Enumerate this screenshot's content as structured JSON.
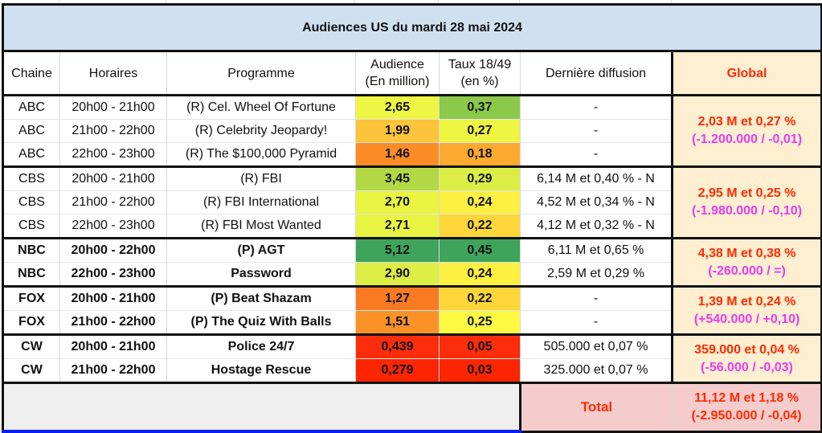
{
  "title": "Audiences US du mardi 28 mai 2024",
  "headers": {
    "chaine": "Chaine",
    "horaires": "Horaires",
    "programme": "Programme",
    "audience_line1": "Audience",
    "audience_line2": "(En million)",
    "taux_line1": "Taux 18/49",
    "taux_line2": "(en %)",
    "derniere": "Dernière diffusion",
    "global": "Global"
  },
  "colors": {
    "title_bg": "#cfe0f1",
    "global_bg": "#fdefd0",
    "global_text": "#ff2a00",
    "diff_text": "#e83cf0",
    "total_bg": "#f4cccc",
    "empty_bg": "#efefef"
  },
  "rows": [
    {
      "chaine": "ABC",
      "horaires": "20h00 - 21h00",
      "programme": "(R) Cel. Wheel Of Fortune",
      "audience": "2,65",
      "taux": "0,37",
      "derniere": "-",
      "aud_color": "#eef542",
      "taux_color": "#8cc94a",
      "bold": false
    },
    {
      "chaine": "ABC",
      "horaires": "21h00 - 22h00",
      "programme": "(R) Celebrity Jeopardy!",
      "audience": "1,99",
      "taux": "0,27",
      "derniere": "-",
      "aud_color": "#fcc43a",
      "taux_color": "#eef542",
      "bold": false
    },
    {
      "chaine": "ABC",
      "horaires": "22h00 - 23h00",
      "programme": "(R) The $100,000 Pyramid",
      "audience": "1,46",
      "taux": "0,18",
      "derniere": "-",
      "aud_color": "#fb8c26",
      "taux_color": "#fdaa30",
      "bold": false
    },
    {
      "chaine": "CBS",
      "horaires": "20h00 - 21h00",
      "programme": "(R) FBI",
      "audience": "3,45",
      "taux": "0,29",
      "derniere": "6,14 M et 0,40 % - N",
      "aud_color": "#b3d846",
      "taux_color": "#dcee46",
      "bold": false
    },
    {
      "chaine": "CBS",
      "horaires": "21h00 - 22h00",
      "programme": "(R) FBI International",
      "audience": "2,70",
      "taux": "0,24",
      "derniere": "4,52 M et 0,34 % - N",
      "aud_color": "#eaf443",
      "taux_color": "#fdf040",
      "bold": false
    },
    {
      "chaine": "CBS",
      "horaires": "22h00 - 23h00",
      "programme": "(R) FBI Most Wanted",
      "audience": "2,71",
      "taux": "0,22",
      "derniere": "4,12 M et 0,32 % - N",
      "aud_color": "#eaf443",
      "taux_color": "#fed63a",
      "bold": false
    },
    {
      "chaine": "NBC",
      "horaires": "20h00 - 22h00",
      "programme": "(P) AGT",
      "audience": "5,12",
      "taux": "0,45",
      "derniere": "6,11 M et 0,65 %",
      "aud_color": "#3ea45c",
      "taux_color": "#3ea45c",
      "bold": true
    },
    {
      "chaine": "NBC",
      "horaires": "22h00 - 23h00",
      "programme": "Password",
      "audience": "2,90",
      "taux": "0,24",
      "derniere": "2,59 M et 0,29 %",
      "aud_color": "#dcee46",
      "taux_color": "#fdf040",
      "bold": true
    },
    {
      "chaine": "FOX",
      "horaires": "20h00 - 21h00",
      "programme": "(P) Beat Shazam",
      "audience": "1,27",
      "taux": "0,22",
      "derniere": "-",
      "aud_color": "#fa7a24",
      "taux_color": "#fed63a",
      "bold": true
    },
    {
      "chaine": "FOX",
      "horaires": "21h00 - 22h00",
      "programme": "(P) The Quiz With Balls",
      "audience": "1,51",
      "taux": "0,25",
      "derniere": "-",
      "aud_color": "#fb9228",
      "taux_color": "#fefa44",
      "bold": true
    },
    {
      "chaine": "CW",
      "horaires": "20h00 - 21h00",
      "programme": "Police 24/7",
      "audience": "0,439",
      "taux": "0,05",
      "derniere": "505.000 et 0,07 %",
      "aud_color": "#fb2d0c",
      "taux_color": "#fb2d0c",
      "bold": true
    },
    {
      "chaine": "CW",
      "horaires": "21h00 - 22h00",
      "programme": "Hostage Rescue",
      "audience": "0,279",
      "taux": "0,03",
      "derniere": "325.000 et 0,07 %",
      "aud_color": "#fb2600",
      "taux_color": "#fb2600",
      "bold": true
    }
  ],
  "globals": [
    {
      "main": "2,03 M et 0,27 %",
      "diff": "(-1.200.000 / -0,01)"
    },
    {
      "main": "2,95 M et 0,25 %",
      "diff": "(-1.980.000 / -0,10)"
    },
    {
      "main": "4,38 M et 0,38 %",
      "diff": "(-260.000 / =)"
    },
    {
      "main": "1,39 M et 0,24 %",
      "diff": "(+540.000 / +0,10)"
    },
    {
      "main": "359.000 et 0,04 %",
      "diff": "(-56.000 / -0,03)"
    }
  ],
  "total": {
    "label": "Total",
    "main": "11,12 M et 1,18 %",
    "diff": "(-2.950.000 / -0,04)"
  }
}
